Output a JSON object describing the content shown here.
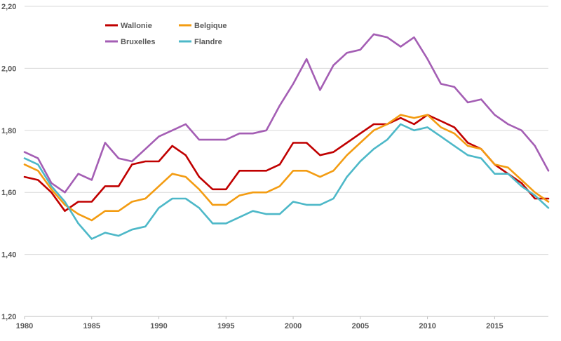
{
  "chart_data": {
    "type": "line",
    "x": [
      1980,
      1981,
      1982,
      1983,
      1984,
      1985,
      1986,
      1987,
      1988,
      1989,
      1990,
      1991,
      1992,
      1993,
      1994,
      1995,
      1996,
      1997,
      1998,
      1999,
      2000,
      2001,
      2002,
      2003,
      2004,
      2005,
      2006,
      2007,
      2008,
      2009,
      2010,
      2011,
      2012,
      2013,
      2014,
      2015,
      2016,
      2017,
      2018,
      2019
    ],
    "x_ticks": [
      1980,
      1985,
      1990,
      1995,
      2000,
      2005,
      2010,
      2015
    ],
    "x_tick_labels": [
      "1980",
      "1985",
      "1990",
      "1995",
      "2000",
      "2005",
      "2010",
      "2015"
    ],
    "y_ticks": [
      1.2,
      1.4,
      1.6,
      1.8,
      2.0,
      2.2
    ],
    "y_tick_labels": [
      "1,20",
      "1,40",
      "1,60",
      "1,80",
      "2,00",
      "2,20"
    ],
    "xlim": [
      1980,
      2019
    ],
    "ylim": [
      1.2,
      2.2
    ],
    "grid": "horizontal",
    "legend_position": "top-left",
    "series": [
      {
        "name": "Wallonie",
        "color": "#c00000",
        "values": [
          1.65,
          1.64,
          1.6,
          1.54,
          1.57,
          1.57,
          1.62,
          1.62,
          1.69,
          1.7,
          1.7,
          1.75,
          1.72,
          1.65,
          1.61,
          1.61,
          1.67,
          1.67,
          1.67,
          1.69,
          1.76,
          1.76,
          1.72,
          1.73,
          1.76,
          1.79,
          1.82,
          1.82,
          1.84,
          1.82,
          1.85,
          1.83,
          1.81,
          1.76,
          1.74,
          1.69,
          1.66,
          1.63,
          1.58,
          1.58
        ]
      },
      {
        "name": "Belgique",
        "color": "#f39c12",
        "values": [
          1.69,
          1.67,
          1.61,
          1.56,
          1.53,
          1.51,
          1.54,
          1.54,
          1.57,
          1.58,
          1.62,
          1.66,
          1.65,
          1.61,
          1.56,
          1.56,
          1.59,
          1.6,
          1.6,
          1.62,
          1.67,
          1.67,
          1.65,
          1.67,
          1.72,
          1.76,
          1.8,
          1.82,
          1.85,
          1.84,
          1.85,
          1.81,
          1.79,
          1.75,
          1.74,
          1.69,
          1.68,
          1.64,
          1.6,
          1.57
        ]
      },
      {
        "name": "Bruxelles",
        "color": "#a45eb4",
        "values": [
          1.73,
          1.71,
          1.63,
          1.6,
          1.66,
          1.64,
          1.76,
          1.71,
          1.7,
          1.74,
          1.78,
          1.8,
          1.82,
          1.77,
          1.77,
          1.77,
          1.79,
          1.79,
          1.8,
          1.88,
          1.95,
          2.03,
          1.93,
          2.01,
          2.05,
          2.06,
          2.11,
          2.1,
          2.07,
          2.1,
          2.03,
          1.95,
          1.94,
          1.89,
          1.9,
          1.85,
          1.82,
          1.8,
          1.75,
          1.67
        ]
      },
      {
        "name": "Flandre",
        "color": "#4db8c8",
        "values": [
          1.71,
          1.69,
          1.62,
          1.57,
          1.5,
          1.45,
          1.47,
          1.46,
          1.48,
          1.49,
          1.55,
          1.58,
          1.58,
          1.55,
          1.5,
          1.5,
          1.52,
          1.54,
          1.53,
          1.53,
          1.57,
          1.56,
          1.56,
          1.58,
          1.65,
          1.7,
          1.74,
          1.77,
          1.82,
          1.8,
          1.81,
          1.78,
          1.75,
          1.72,
          1.71,
          1.66,
          1.66,
          1.62,
          1.59,
          1.55
        ]
      }
    ]
  }
}
